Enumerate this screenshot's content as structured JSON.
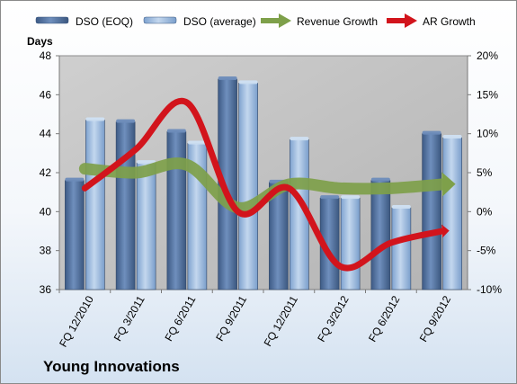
{
  "company": "Young Innovations",
  "legend": {
    "dso_eoq": "DSO (EOQ)",
    "dso_avg": "DSO (average)",
    "rev_growth": "Revenue Growth",
    "ar_growth": "AR Growth"
  },
  "colors": {
    "dso_eoq": "#4f6d99",
    "dso_avg": "#93b4db",
    "revenue_growth": "#7ea04a",
    "ar_growth": "#d2141c",
    "plot_bg": "#c0c0c0"
  },
  "chart_data": {
    "type": "bar",
    "title": "Young Innovations",
    "ylabel": "Days",
    "categories": [
      "FQ 12/2010",
      "FQ 3/2011",
      "FQ 6/2011",
      "FQ 9/2011",
      "FQ 12/2011",
      "FQ 3/2012",
      "FQ 6/2012",
      "FQ 9/2012"
    ],
    "ylim": [
      36,
      48
    ],
    "yticks": [
      36,
      38,
      40,
      42,
      44,
      46,
      48
    ],
    "y2lim": [
      -10,
      20
    ],
    "y2ticks": [
      "-10%",
      "-5%",
      "0%",
      "5%",
      "10%",
      "15%",
      "20%"
    ],
    "y2tick_values": [
      -10,
      -5,
      0,
      5,
      10,
      15,
      20
    ],
    "grid": false,
    "legend_position": "top",
    "series": [
      {
        "name": "DSO (EOQ)",
        "axis": "left",
        "kind": "bar",
        "values": [
          41.6,
          44.6,
          44.1,
          46.8,
          41.5,
          40.7,
          41.6,
          44.0
        ]
      },
      {
        "name": "DSO (average)",
        "axis": "left",
        "kind": "bar",
        "values": [
          44.7,
          42.5,
          43.5,
          46.6,
          43.7,
          40.7,
          40.2,
          43.8
        ]
      },
      {
        "name": "Revenue Growth",
        "axis": "right",
        "kind": "line",
        "values": [
          5.5,
          5.0,
          6.0,
          0.5,
          3.5,
          3.0,
          3.0,
          3.5
        ]
      },
      {
        "name": "AR Growth",
        "axis": "right",
        "kind": "line",
        "values": [
          3.0,
          8.0,
          14.0,
          0.0,
          3.0,
          -7.0,
          -4.0,
          -2.5
        ]
      }
    ]
  }
}
